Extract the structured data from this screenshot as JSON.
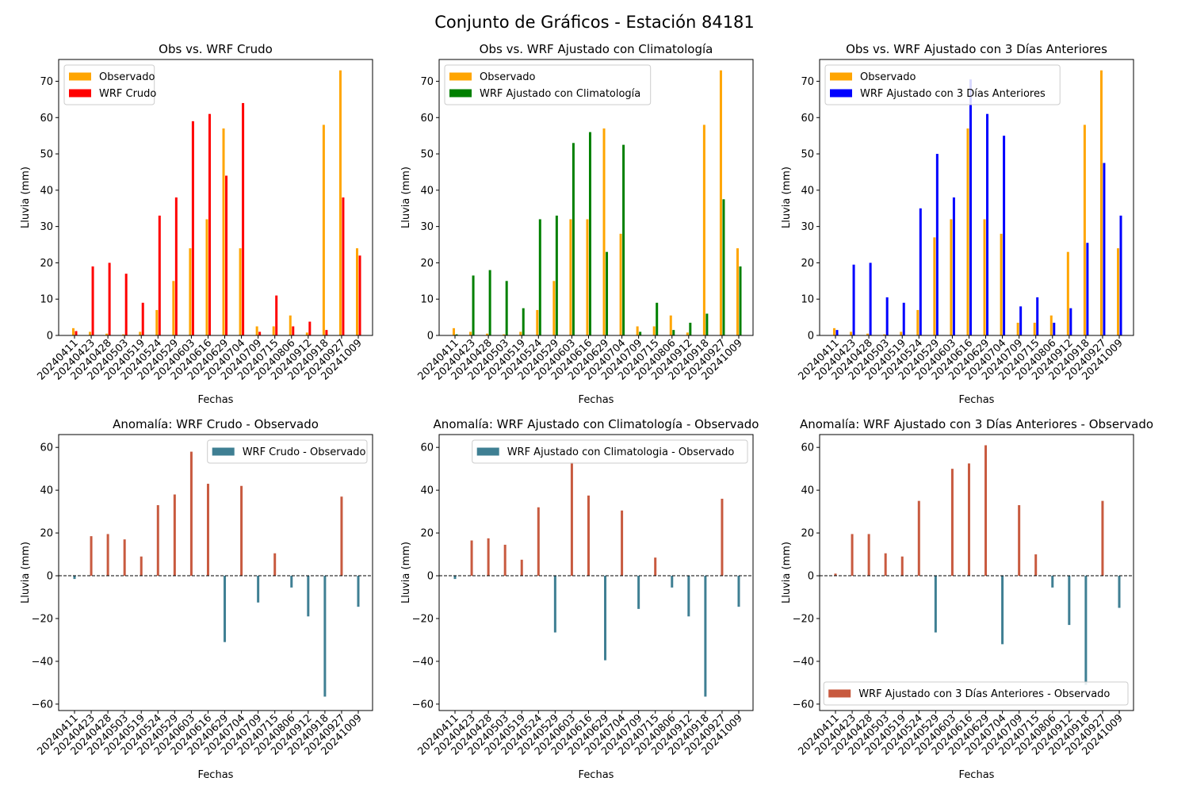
{
  "figure": {
    "title": "Conjunto de Gráficos - Estación 84181",
    "ylabel": "Lluvia (mm)",
    "xlabel": "Fechas",
    "date_ticks": [
      "20240411",
      "20240423",
      "20240428",
      "20240503",
      "20240519",
      "20240524",
      "20240529",
      "20240603",
      "20240616",
      "20240629",
      "20240704",
      "20240709",
      "20240715",
      "20240806",
      "20240912",
      "20240918",
      "20240927",
      "20241009"
    ],
    "colors": {
      "observado": "#ffa500",
      "wrf_crudo": "#ff0000",
      "wrf_clim": "#008000",
      "wrf_3dias": "#0000ff",
      "anomaly_negative": "#3f7f93",
      "anomaly_positive": "#c85a3f",
      "zero_line": "#000000"
    }
  },
  "chart_data": [
    {
      "type": "bar",
      "title": "Obs vs. WRF Crudo",
      "xlabel": "Fechas",
      "ylabel": "Lluvia (mm)",
      "ylim": [
        0,
        76
      ],
      "yticks": [
        0,
        10,
        20,
        30,
        40,
        50,
        60,
        70
      ],
      "legend_position": "top-left",
      "x": [
        "20240411",
        "20240423",
        "20240428",
        "20240503",
        "20240519",
        "20240524",
        "20240529",
        "20240603",
        "20240616",
        "20240629",
        "20240704",
        "20240709",
        "20240715",
        "20240806",
        "20240912",
        "20240918",
        "20240927",
        "20241009"
      ],
      "series": [
        {
          "name": "Observado",
          "color": "#ffa500",
          "values": [
            2.0,
            1.0,
            0.5,
            0.3,
            1.0,
            7.0,
            15.0,
            24.0,
            32.0,
            57.0,
            24.0,
            2.5,
            2.5,
            5.5,
            0.8,
            58.0,
            73.0,
            24.0
          ]
        },
        {
          "name": "WRF Crudo",
          "color": "#ff0000",
          "values": [
            1.2,
            19.0,
            20.0,
            17.0,
            9.0,
            33.0,
            38.0,
            59.0,
            61.0,
            44.0,
            64.0,
            1.0,
            11.0,
            2.5,
            3.8,
            1.5,
            38.0,
            22.0
          ]
        }
      ]
    },
    {
      "type": "bar",
      "title": "Obs vs. WRF Ajustado con Climatología",
      "xlabel": "Fechas",
      "ylabel": "Lluvia (mm)",
      "ylim": [
        0,
        76
      ],
      "yticks": [
        0,
        10,
        20,
        30,
        40,
        50,
        60,
        70
      ],
      "legend_position": "top-left",
      "x": [
        "20240411",
        "20240423",
        "20240428",
        "20240503",
        "20240519",
        "20240524",
        "20240529",
        "20240603",
        "20240616",
        "20240629",
        "20240704",
        "20240709",
        "20240715",
        "20240806",
        "20240912",
        "20240918",
        "20240927",
        "20241009"
      ],
      "series": [
        {
          "name": "Observado",
          "color": "#ffa500",
          "values": [
            2.0,
            1.0,
            0.5,
            0.3,
            1.0,
            7.0,
            15.0,
            32.0,
            32.0,
            57.0,
            28.0,
            2.5,
            2.5,
            5.5,
            0.8,
            58.0,
            73.0,
            24.0
          ]
        },
        {
          "name": "WRF Ajustado con Climatología",
          "color": "#008000",
          "values": [
            0.3,
            16.5,
            18.0,
            15.0,
            7.5,
            32.0,
            33.0,
            53.0,
            56.0,
            23.0,
            52.5,
            1.0,
            9.0,
            1.5,
            3.5,
            6.0,
            37.5,
            19.0
          ]
        }
      ]
    },
    {
      "type": "bar",
      "title": "Obs vs. WRF Ajustado con 3 Días Anteriores",
      "xlabel": "Fechas",
      "ylabel": "Lluvia (mm)",
      "ylim": [
        0,
        76
      ],
      "yticks": [
        0,
        10,
        20,
        30,
        40,
        50,
        60,
        70
      ],
      "legend_position": "top-left",
      "x": [
        "20240411",
        "20240423",
        "20240428",
        "20240503",
        "20240519",
        "20240524",
        "20240529",
        "20240603",
        "20240616",
        "20240629",
        "20240704",
        "20240709",
        "20240715",
        "20240806",
        "20240912",
        "20240918",
        "20240927",
        "20241009"
      ],
      "series": [
        {
          "name": "Observado",
          "color": "#ffa500",
          "values": [
            2.0,
            1.0,
            0.5,
            0.3,
            1.0,
            7.0,
            27.0,
            32.0,
            57.0,
            32.0,
            28.0,
            3.5,
            3.5,
            5.5,
            23.0,
            58.0,
            73.0,
            24.0
          ]
        },
        {
          "name": "WRF Ajustado con 3 Días Anteriores",
          "color": "#0000ff",
          "values": [
            1.5,
            19.5,
            20.0,
            10.5,
            9.0,
            35.0,
            50.0,
            38.0,
            70.5,
            61.0,
            55.0,
            8.0,
            10.5,
            3.5,
            7.5,
            25.5,
            47.5,
            33.0
          ]
        }
      ]
    },
    {
      "type": "bar",
      "title": "Anomalía: WRF Crudo - Observado",
      "xlabel": "Fechas",
      "ylabel": "Lluvia (mm)",
      "ylim": [
        -63,
        66
      ],
      "yticks": [
        -60,
        -40,
        -20,
        0,
        20,
        40,
        60
      ],
      "legend_position": "top-right",
      "x": [
        "20240411",
        "20240423",
        "20240428",
        "20240503",
        "20240519",
        "20240524",
        "20240529",
        "20240603",
        "20240616",
        "20240629",
        "20240704",
        "20240709",
        "20240715",
        "20240806",
        "20240912",
        "20240918",
        "20240927",
        "20241009"
      ],
      "series": [
        {
          "name": "WRF Crudo - Observado",
          "color": "#3f7f93",
          "values": [
            -1.5,
            18.5,
            19.5,
            17.0,
            9.0,
            33.0,
            38.0,
            58.0,
            43.0,
            -31.0,
            42.0,
            -12.5,
            10.5,
            -5.5,
            -19.0,
            -56.5,
            37.0,
            -14.5
          ]
        }
      ]
    },
    {
      "type": "bar",
      "title": "Anomalía: WRF Ajustado con Climatología - Observado",
      "xlabel": "Fechas",
      "ylabel": "Lluvia (mm)",
      "ylim": [
        -63,
        66
      ],
      "yticks": [
        -60,
        -40,
        -20,
        0,
        20,
        40,
        60
      ],
      "legend_position": "top-right",
      "x": [
        "20240411",
        "20240423",
        "20240428",
        "20240503",
        "20240519",
        "20240524",
        "20240529",
        "20240603",
        "20240616",
        "20240629",
        "20240704",
        "20240709",
        "20240715",
        "20240806",
        "20240912",
        "20240918",
        "20240927",
        "20241009"
      ],
      "series": [
        {
          "name": "WRF Ajustado con Climatologia - Observado",
          "color": "#3f7f93",
          "values": [
            -1.5,
            16.5,
            17.5,
            14.5,
            7.5,
            32.0,
            -26.5,
            53.0,
            37.5,
            -39.5,
            30.5,
            -15.5,
            8.5,
            -5.5,
            -19.0,
            -56.5,
            36.0,
            -14.5
          ]
        }
      ]
    },
    {
      "type": "bar",
      "title": "Anomalía: WRF Ajustado con 3 Días Anteriores - Observado",
      "xlabel": "Fechas",
      "ylabel": "Lluvia (mm)",
      "ylim": [
        -63,
        66
      ],
      "yticks": [
        -60,
        -40,
        -20,
        0,
        20,
        40,
        60
      ],
      "legend_position": "bottom-right",
      "x": [
        "20240411",
        "20240423",
        "20240428",
        "20240503",
        "20240519",
        "20240524",
        "20240529",
        "20240603",
        "20240616",
        "20240629",
        "20240704",
        "20240709",
        "20240715",
        "20240806",
        "20240912",
        "20240918",
        "20240927",
        "20241009"
      ],
      "series": [
        {
          "name": "WRF Ajustado con 3 Días Anteriores - Observado",
          "color": "#c85a3f",
          "values": [
            1.0,
            19.5,
            19.5,
            10.5,
            9.0,
            35.0,
            -26.5,
            50.0,
            52.5,
            61.0,
            -32.0,
            33.0,
            10.0,
            -5.5,
            -23.0,
            -51.0,
            35.0,
            -15.0
          ]
        }
      ]
    }
  ]
}
